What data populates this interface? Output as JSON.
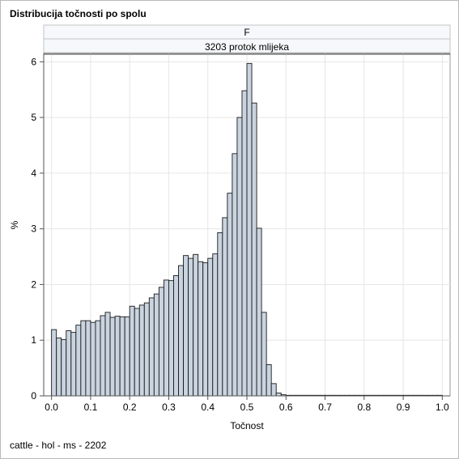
{
  "title": "Distribucija točnosti po spolu",
  "footnote": "cattle - hol - ms - 2202",
  "chart_data": {
    "type": "bar",
    "subtype": "histogram",
    "panel_headers": [
      "F",
      "3203 protok mlijeka"
    ],
    "xlabel": "Točnost",
    "ylabel": "%",
    "xlim": [
      -0.02,
      1.02
    ],
    "ylim": [
      0,
      6.15
    ],
    "x_ticks": [
      "0.0",
      "0.1",
      "0.2",
      "0.3",
      "0.4",
      "0.5",
      "0.6",
      "0.7",
      "0.8",
      "0.9",
      "1.0"
    ],
    "y_ticks": [
      "0",
      "1",
      "2",
      "3",
      "4",
      "5",
      "6"
    ],
    "grid": true,
    "bin_width": 0.0125,
    "bins_start": 0.0,
    "bar_fill": "#c9d4e0",
    "bar_stroke": "#1a1a1a",
    "values": [
      1.19,
      1.04,
      1.01,
      1.17,
      1.14,
      1.27,
      1.35,
      1.35,
      1.32,
      1.35,
      1.44,
      1.5,
      1.41,
      1.43,
      1.42,
      1.42,
      1.61,
      1.57,
      1.63,
      1.67,
      1.76,
      1.83,
      1.95,
      2.08,
      2.07,
      2.16,
      2.34,
      2.52,
      2.47,
      2.54,
      2.41,
      2.39,
      2.47,
      2.55,
      2.93,
      3.2,
      3.64,
      4.35,
      5.0,
      5.48,
      5.97,
      5.26,
      3.01,
      1.5,
      0.56,
      0.22,
      0.05,
      0.02,
      0.01,
      0.01,
      0.01,
      0.01,
      0.01,
      0.01,
      0.01,
      0.01,
      0.01,
      0.01,
      0.01,
      0.01,
      0.01,
      0.01,
      0.01,
      0.01,
      0.01,
      0.01,
      0.01,
      0.01,
      0.01,
      0.01,
      0.01,
      0.01,
      0.01,
      0.01,
      0.01,
      0.01,
      0.01,
      0.01,
      0.01,
      0.01
    ]
  }
}
